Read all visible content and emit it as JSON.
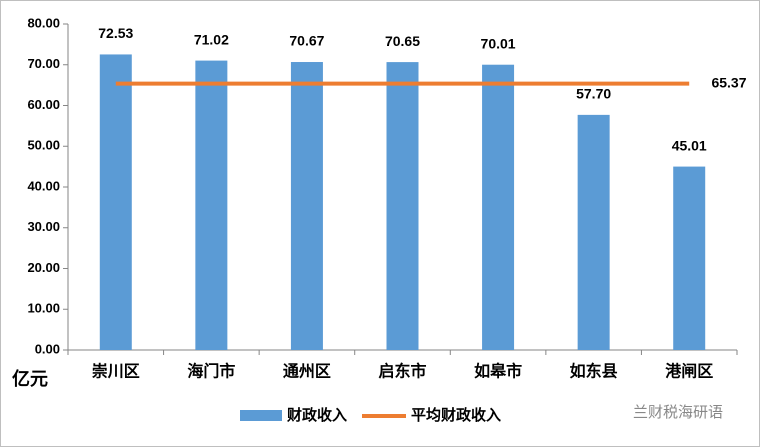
{
  "chart_data": {
    "type": "bar",
    "categories": [
      "崇川区",
      "海门市",
      "通州区",
      "启东市",
      "如皋市",
      "如东县",
      "港闸区"
    ],
    "series": [
      {
        "name": "财政收入",
        "color": "#5b9bd5",
        "values": [
          72.53,
          71.02,
          70.67,
          70.65,
          70.01,
          57.7,
          45.01
        ],
        "value_labels": [
          "72.53",
          "71.02",
          "70.67",
          "70.65",
          "70.01",
          "57.70",
          "45.01"
        ]
      }
    ],
    "average_line": {
      "name": "平均财政收入",
      "color": "#ed7d31",
      "value": 65.37
    },
    "y_unit": "亿元",
    "ylim": [
      0,
      80
    ],
    "yticks": [
      {
        "value": 0,
        "label": "0.00"
      },
      {
        "value": 10,
        "label": "10.00"
      },
      {
        "value": 20,
        "label": "20.00"
      },
      {
        "value": 30,
        "label": "30.00"
      },
      {
        "value": 40,
        "label": "40.00"
      },
      {
        "value": 50,
        "label": "50.00"
      },
      {
        "value": 60,
        "label": "60.00"
      },
      {
        "value": 70,
        "label": "70.00"
      },
      {
        "value": 80,
        "label": "80.00"
      }
    ],
    "grid": false,
    "legend": "bottom",
    "watermark": "兰财税海研语"
  }
}
